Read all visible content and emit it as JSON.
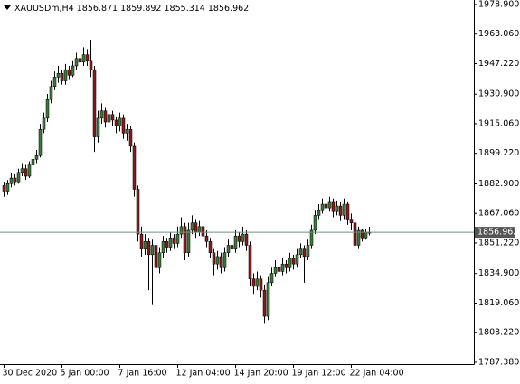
{
  "chart_data": {
    "type": "candlestick",
    "symbol": "XAUUSDm,H4",
    "bull_color": "#3a7a3a",
    "bear_color": "#8b1a1a",
    "wick_color": "#000000",
    "price_line_color": "#6f8f7f",
    "categories": [
      "30 Dec 2020",
      null,
      null,
      null,
      null,
      null,
      null,
      null,
      null,
      null,
      null,
      null,
      null,
      null,
      null,
      null,
      "5 Jan 00:00",
      null,
      null,
      null,
      null,
      null,
      null,
      null,
      null,
      null,
      null,
      null,
      null,
      null,
      null,
      null,
      "7 Jan 16:00",
      null,
      null,
      null,
      null,
      null,
      null,
      null,
      null,
      null,
      null,
      null,
      null,
      null,
      null,
      null,
      "12 Jan 04:00",
      null,
      null,
      null,
      null,
      null,
      null,
      null,
      null,
      null,
      null,
      null,
      null,
      null,
      null,
      null,
      "14 Jan 20:00",
      null,
      null,
      null,
      null,
      null,
      null,
      null,
      null,
      null,
      null,
      null,
      null,
      null,
      null,
      null,
      "19 Jan 12:00",
      null,
      null,
      null,
      null,
      null,
      null,
      null,
      null,
      null,
      null,
      null,
      null,
      null,
      null,
      null,
      "22 Jan 04:00",
      null,
      null,
      null,
      null,
      null
    ],
    "open": [
      1882,
      1879,
      1883,
      1886,
      1884,
      1889,
      1891,
      1887,
      1893,
      1896,
      1898,
      1912,
      1918,
      1928,
      1935,
      1940,
      1942,
      1938,
      1944,
      1941,
      1946,
      1950,
      1948,
      1952,
      1949,
      1944,
      1908,
      1918,
      1922,
      1916,
      1920,
      1917,
      1914,
      1918,
      1910,
      1912,
      1903,
      1880,
      1856,
      1848,
      1852,
      1845,
      1850,
      1838,
      1846,
      1852,
      1849,
      1854,
      1851,
      1856,
      1860,
      1846,
      1858,
      1862,
      1857,
      1860,
      1855,
      1852,
      1846,
      1840,
      1844,
      1838,
      1846,
      1850,
      1848,
      1855,
      1852,
      1856,
      1850,
      1832,
      1828,
      1832,
      1826,
      1812,
      1830,
      1835,
      1838,
      1836,
      1840,
      1838,
      1843,
      1840,
      1845,
      1848,
      1844,
      1850,
      1858,
      1866,
      1869,
      1872,
      1870,
      1873,
      1868,
      1871,
      1866,
      1872,
      1864,
      1862,
      1850,
      1858,
      1854,
      1856.871
    ],
    "high": [
      1884,
      1885,
      1889,
      1888,
      1891,
      1894,
      1893,
      1895,
      1899,
      1901,
      1915,
      1921,
      1931,
      1938,
      1943,
      1946,
      1944,
      1947,
      1946,
      1949,
      1953,
      1952,
      1956,
      1955,
      1960,
      1946,
      1922,
      1926,
      1924,
      1923,
      1922,
      1919,
      1921,
      1920,
      1915,
      1914,
      1905,
      1882,
      1860,
      1856,
      1854,
      1853,
      1852,
      1849,
      1855,
      1854,
      1857,
      1856,
      1860,
      1865,
      1862,
      1862,
      1866,
      1864,
      1863,
      1862,
      1858,
      1854,
      1848,
      1847,
      1846,
      1849,
      1853,
      1852,
      1858,
      1857,
      1860,
      1858,
      1852,
      1835,
      1836,
      1834,
      1829,
      1833,
      1838,
      1842,
      1840,
      1843,
      1842,
      1846,
      1845,
      1848,
      1851,
      1850,
      1853,
      1861,
      1869,
      1872,
      1875,
      1874,
      1876,
      1875,
      1874,
      1873,
      1875,
      1873,
      1867,
      1864,
      1860,
      1859,
      1859,
      1859.892
    ],
    "low": [
      1876,
      1877,
      1881,
      1882,
      1883,
      1887,
      1885,
      1886,
      1891,
      1894,
      1897,
      1910,
      1916,
      1926,
      1933,
      1937,
      1936,
      1936,
      1939,
      1940,
      1944,
      1945,
      1946,
      1946,
      1940,
      1900,
      1905,
      1915,
      1913,
      1914,
      1914,
      1910,
      1911,
      1907,
      1906,
      1900,
      1876,
      1852,
      1844,
      1845,
      1826,
      1818,
      1828,
      1835,
      1843,
      1846,
      1847,
      1848,
      1849,
      1854,
      1842,
      1844,
      1856,
      1854,
      1855,
      1852,
      1849,
      1843,
      1834,
      1837,
      1835,
      1836,
      1844,
      1845,
      1846,
      1849,
      1850,
      1847,
      1828,
      1824,
      1826,
      1822,
      1808,
      1810,
      1828,
      1833,
      1833,
      1834,
      1835,
      1836,
      1837,
      1838,
      1843,
      1830,
      1842,
      1848,
      1856,
      1864,
      1867,
      1867,
      1868,
      1865,
      1866,
      1863,
      1864,
      1861,
      1858,
      1843,
      1848,
      1852,
      1853,
      1855.314
    ],
    "close": [
      1879,
      1883,
      1886,
      1884,
      1889,
      1891,
      1887,
      1893,
      1896,
      1898,
      1912,
      1918,
      1928,
      1935,
      1940,
      1942,
      1938,
      1944,
      1941,
      1946,
      1950,
      1948,
      1952,
      1949,
      1944,
      1908,
      1918,
      1922,
      1916,
      1920,
      1917,
      1914,
      1918,
      1910,
      1912,
      1903,
      1880,
      1856,
      1848,
      1852,
      1845,
      1850,
      1838,
      1846,
      1852,
      1849,
      1854,
      1851,
      1856,
      1860,
      1846,
      1858,
      1862,
      1857,
      1860,
      1855,
      1852,
      1846,
      1840,
      1844,
      1838,
      1846,
      1850,
      1848,
      1855,
      1852,
      1856,
      1850,
      1832,
      1828,
      1832,
      1826,
      1812,
      1830,
      1835,
      1838,
      1836,
      1840,
      1838,
      1843,
      1840,
      1845,
      1848,
      1844,
      1850,
      1858,
      1866,
      1869,
      1872,
      1870,
      1873,
      1868,
      1871,
      1866,
      1872,
      1864,
      1862,
      1850,
      1858,
      1854,
      1857,
      1856.962
    ],
    "ylim": [
      1786.4,
      1981.3
    ],
    "yticks": [
      {
        "value": 1978.9,
        "label": "1978.900"
      },
      {
        "value": 1963.06,
        "label": "1963.060"
      },
      {
        "value": 1947.22,
        "label": "1947.220"
      },
      {
        "value": 1930.9,
        "label": "1930.900"
      },
      {
        "value": 1915.06,
        "label": "1915.060"
      },
      {
        "value": 1899.22,
        "label": "1899.220"
      },
      {
        "value": 1882.9,
        "label": "1882.900"
      },
      {
        "value": 1867.06,
        "label": "1867.060"
      },
      {
        "value": 1851.22,
        "label": "1851.220"
      },
      {
        "value": 1834.9,
        "label": "1834.900"
      },
      {
        "value": 1819.06,
        "label": "1819.060"
      },
      {
        "value": 1803.22,
        "label": "1803.220"
      },
      {
        "value": 1787.38,
        "label": "1787.380"
      }
    ]
  }
}
